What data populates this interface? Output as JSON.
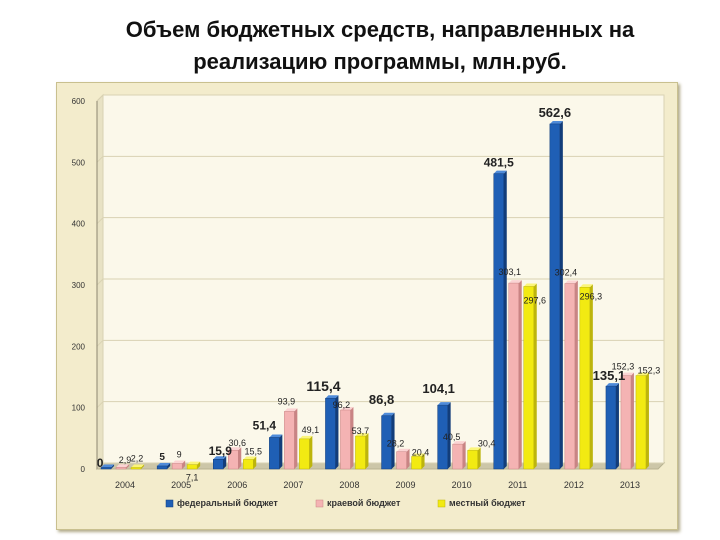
{
  "title_line1": "Объем бюджетных средств, направленных на",
  "title_line2": "реализацию программы, млн.руб.",
  "colors": {
    "federal": "#1f5fb5",
    "regional": "#f4b3b3",
    "local": "#f2ea12",
    "frame_bg": "#f3eccc",
    "plot_bg": "#fbf8ea",
    "grid": "#d9d2b3"
  },
  "chart_data": {
    "type": "bar",
    "title": "Объем бюджетных средств, направленных на реализацию программы, млн.руб.",
    "categories": [
      "2004",
      "2005",
      "2006",
      "2007",
      "2008",
      "2009",
      "2010",
      "2011",
      "2012",
      "2013"
    ],
    "series": [
      {
        "name": "федеральный бюджет",
        "values": [
          0,
          5,
          15.9,
          51.4,
          115.4,
          86.8,
          104.1,
          481.5,
          562.6,
          135.1
        ],
        "labels": [
          "0",
          "5",
          "15,9",
          "51,4",
          "115,4",
          "86,8",
          "104,1",
          "481,5",
          "562,6",
          "135,1"
        ]
      },
      {
        "name": "краевой бюджет",
        "values": [
          2.9,
          9,
          30.6,
          93.9,
          96.2,
          28.2,
          40.5,
          303.1,
          302.4,
          152.3
        ],
        "labels": [
          "2,9",
          "9",
          "30,6",
          "93,9",
          "96,2",
          "28,2",
          "40,5",
          "303,1",
          "302,4",
          "152,3"
        ]
      },
      {
        "name": "местный бюджет",
        "values": [
          2.2,
          7.1,
          15.5,
          49.1,
          53.7,
          20.4,
          30.4,
          297.6,
          296.3,
          152.3
        ],
        "labels": [
          "2,2",
          "7,1",
          "15,5",
          "49,1",
          "53,7",
          "20,4",
          "30,4",
          "297,6",
          "296,3",
          "152,3"
        ]
      }
    ],
    "y_ticks": [
      0,
      100,
      200,
      300,
      400,
      500,
      600
    ],
    "ylim": [
      0,
      600
    ],
    "grid": true,
    "legend_position": "bottom"
  }
}
